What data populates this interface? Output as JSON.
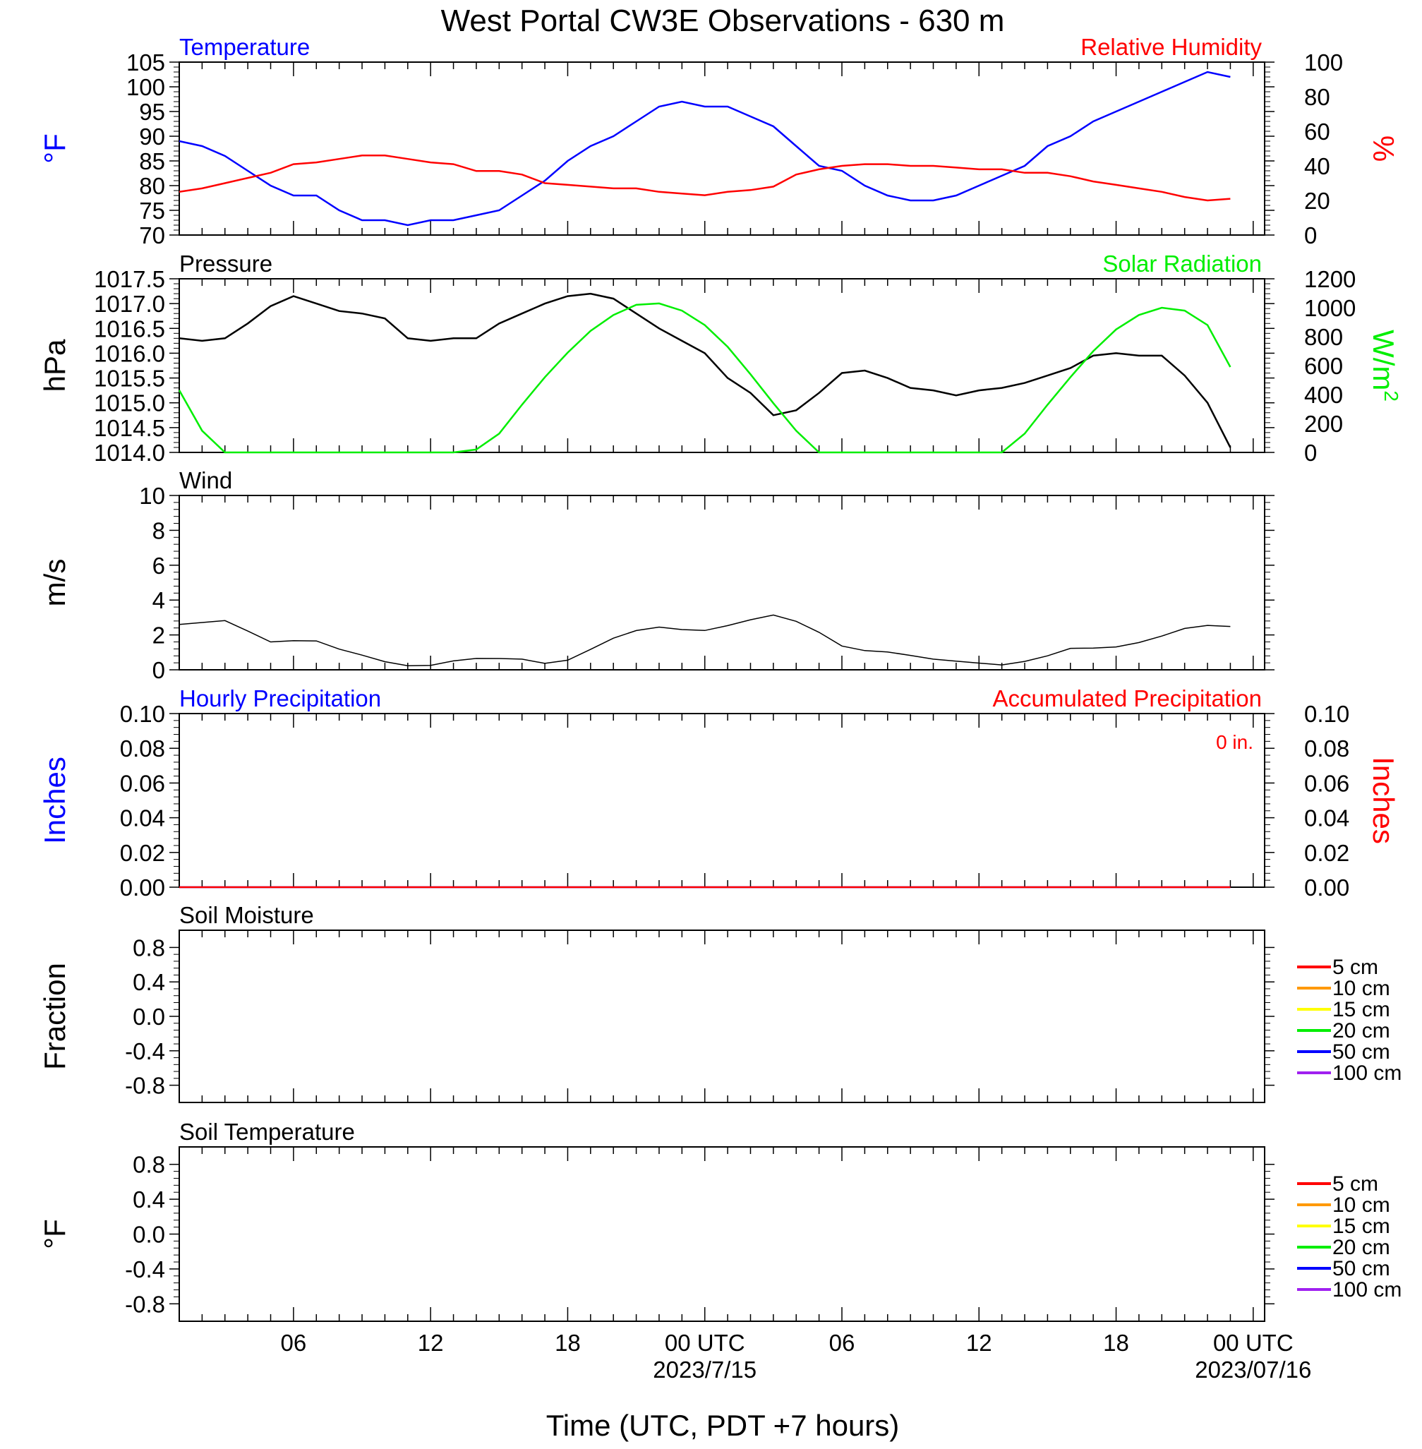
{
  "title": "West Portal CW3E Observations - 630 m",
  "x_axis": {
    "label": "Time (UTC, PDT +7 hours)",
    "tick_labels": [
      "06",
      "12",
      "18",
      "00 UTC",
      "06",
      "12",
      "18",
      "00 UTC"
    ],
    "date_labels": [
      "2023/7/15",
      "2023/07/16"
    ]
  },
  "colors": {
    "blue": "#0000ff",
    "red": "#ff0000",
    "green": "#00ee00",
    "black": "#000000",
    "orange": "#ff9900",
    "yellow": "#ffff00",
    "purple": "#a020f0"
  },
  "chart_data": [
    {
      "type": "line",
      "panel": "temperature_rh",
      "title_left": "Temperature",
      "title_right": "Relative Humidity",
      "ylabel_left": "°F",
      "ylabel_right": "%",
      "ylim_left": [
        70,
        105
      ],
      "ylim_right": [
        0,
        100
      ],
      "yticks_left": [
        "70",
        "75",
        "80",
        "85",
        "90",
        "95",
        "100",
        "105"
      ],
      "yticks_right": [
        "0",
        "20",
        "40",
        "60",
        "80",
        "100"
      ],
      "x_hours_utc_from_2023-07-14T01": "series x values are hours",
      "series": [
        {
          "name": "Temperature",
          "axis": "left",
          "color": "blue",
          "x": [
            0,
            1,
            2,
            3,
            4,
            5,
            6,
            7,
            8,
            9,
            10,
            11,
            12,
            13,
            14,
            15,
            16,
            17,
            18,
            19,
            20,
            21,
            22,
            23,
            24,
            25,
            26,
            27,
            28,
            29,
            30,
            31,
            32,
            33,
            34,
            35,
            36,
            37,
            38,
            39,
            40,
            41,
            42,
            43,
            44,
            45,
            46
          ],
          "y": [
            89,
            88,
            86,
            83,
            80,
            78,
            78,
            75,
            73,
            73,
            72,
            73,
            73,
            74,
            75,
            78,
            81,
            85,
            88,
            90,
            93,
            96,
            97,
            96,
            96,
            94,
            92,
            88,
            84,
            83,
            80,
            78,
            77,
            77,
            78,
            80,
            82,
            84,
            88,
            90,
            93,
            95,
            97,
            99,
            101,
            103,
            102
          ]
        },
        {
          "name": "Relative Humidity",
          "axis": "right",
          "color": "red",
          "x": [
            0,
            1,
            2,
            3,
            4,
            5,
            6,
            7,
            8,
            9,
            10,
            11,
            12,
            13,
            14,
            15,
            16,
            17,
            18,
            19,
            20,
            21,
            22,
            23,
            24,
            25,
            26,
            27,
            28,
            29,
            30,
            31,
            32,
            33,
            34,
            35,
            36,
            37,
            38,
            39,
            40,
            41,
            42,
            43,
            44,
            45,
            46
          ],
          "y": [
            25,
            27,
            30,
            33,
            36,
            41,
            42,
            44,
            46,
            46,
            44,
            42,
            41,
            37,
            37,
            35,
            30,
            29,
            28,
            27,
            27,
            25,
            24,
            23,
            25,
            26,
            28,
            35,
            38,
            40,
            41,
            41,
            40,
            40,
            39,
            38,
            38,
            36,
            36,
            34,
            31,
            29,
            27,
            25,
            22,
            20,
            21
          ]
        }
      ]
    },
    {
      "type": "line",
      "panel": "pressure_solar",
      "title_left": "Pressure",
      "title_right": "Solar Radiation",
      "ylabel_left": "hPa",
      "ylabel_right_base": "W/m",
      "ylabel_right_sup": "2",
      "ylim_left": [
        1014.0,
        1017.5
      ],
      "ylim_right": [
        0,
        1200
      ],
      "yticks_left": [
        "1014.0",
        "1014.5",
        "1015.0",
        "1015.5",
        "1016.0",
        "1016.5",
        "1017.0",
        "1017.5"
      ],
      "yticks_right": [
        "0",
        "200",
        "400",
        "600",
        "800",
        "1000",
        "1200"
      ],
      "series": [
        {
          "name": "Pressure",
          "axis": "left",
          "color": "black",
          "x": [
            0,
            1,
            2,
            3,
            4,
            5,
            6,
            7,
            8,
            9,
            10,
            11,
            12,
            13,
            14,
            15,
            16,
            17,
            18,
            19,
            20,
            21,
            22,
            23,
            24,
            25,
            26,
            27,
            28,
            29,
            30,
            31,
            32,
            33,
            34,
            35,
            36,
            37,
            38,
            39,
            40,
            41,
            42,
            43,
            44,
            45,
            46
          ],
          "y": [
            1016.3,
            1016.25,
            1016.3,
            1016.6,
            1016.95,
            1017.15,
            1017.0,
            1016.85,
            1016.8,
            1016.7,
            1016.3,
            1016.25,
            1016.3,
            1016.3,
            1016.6,
            1016.8,
            1017.0,
            1017.15,
            1017.2,
            1017.1,
            1016.8,
            1016.5,
            1016.25,
            1016.0,
            1015.5,
            1015.2,
            1014.75,
            1014.85,
            1015.2,
            1015.6,
            1015.65,
            1015.5,
            1015.3,
            1015.25,
            1015.15,
            1015.25,
            1015.3,
            1015.4,
            1015.55,
            1015.7,
            1015.95,
            1016.0,
            1015.95,
            1015.95,
            1015.55,
            1015.0,
            1014.1
          ]
        },
        {
          "name": "Solar Radiation",
          "axis": "right",
          "color": "green",
          "x": [
            0,
            1,
            2,
            3,
            4,
            5,
            6,
            7,
            8,
            9,
            10,
            11,
            12,
            13,
            14,
            15,
            16,
            17,
            18,
            19,
            20,
            21,
            22,
            23,
            24,
            25,
            26,
            27,
            28,
            29,
            30,
            31,
            32,
            33,
            34,
            35,
            36,
            37,
            38,
            39,
            40,
            41,
            42,
            43,
            44,
            45,
            46
          ],
          "y": [
            430,
            150,
            0,
            0,
            0,
            0,
            0,
            0,
            0,
            0,
            0,
            0,
            0,
            20,
            130,
            330,
            520,
            690,
            840,
            950,
            1020,
            1030,
            980,
            880,
            730,
            540,
            340,
            150,
            0,
            0,
            0,
            0,
            0,
            0,
            0,
            0,
            0,
            130,
            330,
            520,
            700,
            850,
            950,
            1000,
            980,
            880,
            590
          ]
        }
      ]
    },
    {
      "type": "line",
      "panel": "wind",
      "title_left": "Wind",
      "ylabel_left": "m/s",
      "ylim_left": [
        0,
        10
      ],
      "yticks_left": [
        "0",
        "2",
        "4",
        "6",
        "8",
        "10"
      ],
      "series": [
        {
          "name": "Wind",
          "axis": "left",
          "color": "black",
          "x": [
            0,
            1,
            2,
            3,
            4,
            5,
            6,
            7,
            8,
            9,
            10,
            11,
            12,
            13,
            14,
            15,
            16,
            17,
            18,
            19,
            20,
            21,
            22,
            23,
            24,
            25,
            26,
            27,
            28,
            29,
            30,
            31,
            32,
            33,
            34,
            35,
            36,
            37,
            38,
            39,
            40,
            41,
            42,
            43,
            44,
            45,
            46
          ],
          "y": [
            2.6,
            2.5,
            2.6,
            2.2,
            1.8,
            1.9,
            1.7,
            1.0,
            0.6,
            0.4,
            0.4,
            0.5,
            0.6,
            0.5,
            0.4,
            0.5,
            0.5,
            0.8,
            1.3,
            1.7,
            2.0,
            2.3,
            2.4,
            2.5,
            2.7,
            2.8,
            2.9,
            2.6,
            2.2,
            1.6,
            1.3,
            1.0,
            0.6,
            0.4,
            0.5,
            0.6,
            0.5,
            0.5,
            0.6,
            1.0,
            1.2,
            1.5,
            1.8,
            2.0,
            2.2,
            2.3,
            2.4
          ]
        }
      ]
    },
    {
      "type": "line",
      "panel": "precipitation",
      "title_left": "Hourly Precipitation",
      "title_right": "Accumulated Precipitation",
      "annotation": "0 in.",
      "ylabel_left": "Inches",
      "ylabel_right": "Inches",
      "ylim_left": [
        0,
        0.1
      ],
      "ylim_right": [
        0,
        0.1
      ],
      "yticks_left": [
        "0.00",
        "0.02",
        "0.04",
        "0.06",
        "0.08",
        "0.10"
      ],
      "yticks_right": [
        "0.00",
        "0.02",
        "0.04",
        "0.06",
        "0.08",
        "0.10"
      ],
      "series": [
        {
          "name": "Hourly Precipitation",
          "axis": "left",
          "color": "blue",
          "x": [
            0,
            46
          ],
          "y": [
            0,
            0
          ]
        },
        {
          "name": "Accumulated Precipitation",
          "axis": "right",
          "color": "red",
          "x": [
            0,
            46
          ],
          "y": [
            0,
            0
          ]
        }
      ]
    },
    {
      "type": "line",
      "panel": "soil_moisture",
      "title_left": "Soil Moisture",
      "ylabel_left": "Fraction",
      "yticks_left": [
        "-0.8",
        "-0.4",
        "0.0",
        "0.4",
        "0.8"
      ],
      "legend": [
        "5 cm",
        "10 cm",
        "15 cm",
        "20 cm",
        "50 cm",
        "100 cm"
      ],
      "legend_colors": [
        "#ff0000",
        "#ff9900",
        "#ffff00",
        "#00ee00",
        "#0000ff",
        "#a020f0"
      ],
      "series": []
    },
    {
      "type": "line",
      "panel": "soil_temperature",
      "title_left": "Soil Temperature",
      "ylabel_left": "°F",
      "yticks_left": [
        "-0.8",
        "-0.4",
        "0.0",
        "0.4",
        "0.8"
      ],
      "legend": [
        "5 cm",
        "10 cm",
        "15 cm",
        "20 cm",
        "50 cm",
        "100 cm"
      ],
      "legend_colors": [
        "#ff0000",
        "#ff9900",
        "#ffff00",
        "#00ee00",
        "#0000ff",
        "#a020f0"
      ],
      "series": []
    }
  ]
}
